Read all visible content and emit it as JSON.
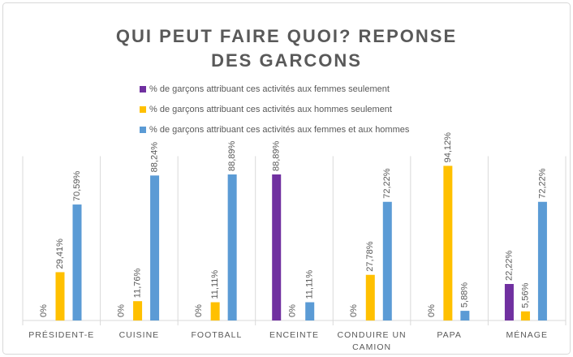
{
  "chart_data": {
    "type": "bar",
    "title": "QUI PEUT FAIRE QUOI? REPONSE DES GARCONS",
    "categories": [
      "PRÉSIDENT-E",
      "CUISINE",
      "FOOTBALL",
      "ENCEINTE",
      "CONDUIRE UN CAMION",
      "PAPA",
      "MÉNAGE"
    ],
    "series": [
      {
        "name": "% de garçons attribuant ces activités aux femmes seulement",
        "color": "#7030a0",
        "values": [
          0,
          0,
          0,
          88.89,
          0,
          0,
          22.22
        ],
        "value_labels": [
          "0%",
          "0%",
          "0%",
          "88,89%",
          "0%",
          "0%",
          "22,22%"
        ]
      },
      {
        "name": "% de garçons attribuant ces activités aux hommes seulement",
        "color": "#ffc000",
        "values": [
          29.41,
          11.76,
          11.11,
          0,
          27.78,
          94.12,
          5.56
        ],
        "value_labels": [
          "29,41%",
          "11,76%",
          "11,11%",
          "0%",
          "27,78%",
          "94,12%",
          "5,56%"
        ]
      },
      {
        "name": "% de garçons attribuant ces activités aux femmes et aux hommes",
        "color": "#5b9bd5",
        "values": [
          70.59,
          88.24,
          88.89,
          11.11,
          72.22,
          5.88,
          72.22
        ],
        "value_labels": [
          "70,59%",
          "88,24%",
          "88,89%",
          "11,11%",
          "72,22%",
          "5,88%",
          "72,22%"
        ]
      }
    ],
    "ylim": [
      0,
      100
    ]
  }
}
